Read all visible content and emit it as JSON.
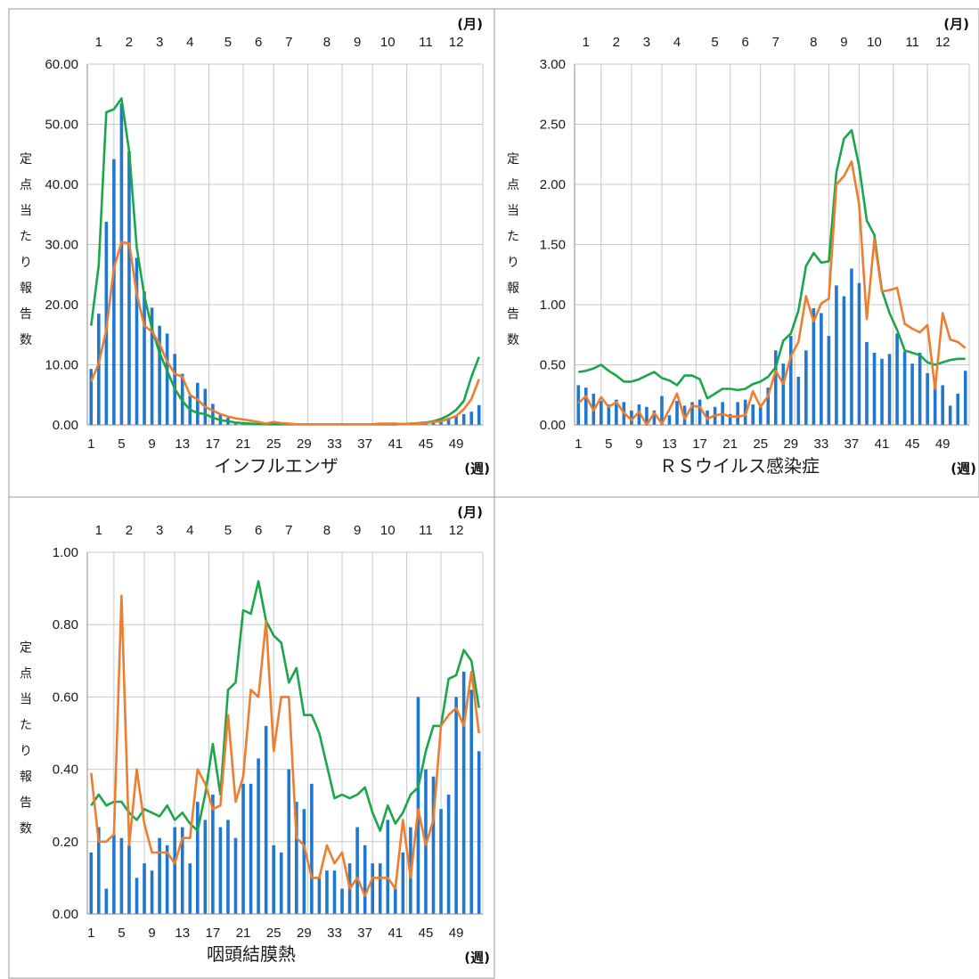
{
  "colors": {
    "bar": "#1f77d0",
    "line_green": "#1aa64a",
    "line_orange": "#ed7d31",
    "grid": "#c8c8c8",
    "frame": "#9a9a9a"
  },
  "month_unit": "(月)",
  "week_unit": "(週)",
  "ylabel": "定点当たり報告数",
  "chart_data": [
    {
      "type": "bar",
      "title": "インフルエンザ",
      "ylim": [
        0,
        60
      ],
      "y_ticks": [
        "0.00",
        "10.00",
        "20.00",
        "30.00",
        "40.00",
        "50.00",
        "60.00"
      ],
      "x_ticks": [
        "1",
        "5",
        "9",
        "13",
        "17",
        "21",
        "25",
        "29",
        "33",
        "37",
        "41",
        "45",
        "49"
      ],
      "months": [
        "1",
        "2",
        "3",
        "4",
        "5",
        "6",
        "7",
        "8",
        "9",
        "10",
        "11",
        "12"
      ],
      "month_week": [
        2.5,
        6.5,
        10.5,
        14.5,
        19.5,
        23.5,
        27.5,
        32.5,
        36.5,
        40.5,
        45.5,
        49.5
      ],
      "weeks": 52,
      "series": [
        {
          "type": "bar",
          "values": [
            9.3,
            18.5,
            33.8,
            44.2,
            53.5,
            45.5,
            27.8,
            22.2,
            19.5,
            16.5,
            15.2,
            11.8,
            8.5,
            4.8,
            7,
            6,
            3.5,
            1.8,
            1.2,
            0.5,
            0.4,
            0.3,
            0.2,
            0.2,
            0.1,
            0.1,
            0.1,
            0.1,
            0.1,
            0.1,
            0.1,
            0.1,
            0.1,
            0.1,
            0.1,
            0.1,
            0.1,
            0.2,
            0.2,
            0.2,
            0.2,
            0.2,
            0.2,
            0.3,
            0.3,
            0.5,
            0.8,
            1.2,
            1.5,
            1.8,
            2.2,
            3.3
          ]
        },
        {
          "type": "line",
          "color": "green",
          "values": [
            16.5,
            26.5,
            52,
            52.5,
            54.3,
            45.5,
            29.5,
            21.5,
            16,
            12,
            9,
            6,
            4,
            2.5,
            2,
            1.8,
            1.2,
            0.8,
            0.6,
            0.4,
            0.3,
            0.2,
            0.15,
            0.1,
            0.1,
            0.1,
            0.1,
            0.1,
            0.1,
            0.1,
            0.1,
            0.1,
            0.1,
            0.1,
            0.1,
            0.1,
            0.1,
            0.1,
            0.1,
            0.1,
            0.1,
            0.15,
            0.2,
            0.3,
            0.4,
            0.6,
            1,
            1.6,
            2.5,
            4,
            8,
            11.3
          ]
        },
        {
          "type": "line",
          "color": "orange",
          "values": [
            7.2,
            10.2,
            15.8,
            26.1,
            30.4,
            30.2,
            21.8,
            16.5,
            15.5,
            13.5,
            10.5,
            8.5,
            8,
            5,
            4.2,
            3,
            2.4,
            1.8,
            1.4,
            1.1,
            0.9,
            0.7,
            0.5,
            0.2,
            0.5,
            0.3,
            0.2,
            0.1,
            0.1,
            0.1,
            0.1,
            0.1,
            0.1,
            0.1,
            0.1,
            0.1,
            0.1,
            0.1,
            0.2,
            0.2,
            0.2,
            0.1,
            0.2,
            0.2,
            0.3,
            0.5,
            0.6,
            1,
            1.5,
            2.6,
            4.3,
            7.6
          ]
        }
      ]
    },
    {
      "type": "bar",
      "title": "ＲＳウイルス感染症",
      "ylim": [
        0,
        3
      ],
      "y_ticks": [
        "0.00",
        "0.50",
        "1.00",
        "1.50",
        "2.00",
        "2.50",
        "3.00"
      ],
      "x_ticks": [
        "1",
        "5",
        "9",
        "13",
        "17",
        "21",
        "25",
        "29",
        "33",
        "37",
        "41",
        "45",
        "49"
      ],
      "months": [
        "1",
        "2",
        "3",
        "4",
        "5",
        "6",
        "7",
        "8",
        "9",
        "10",
        "11",
        "12"
      ],
      "month_week": [
        2.5,
        6.5,
        10.5,
        14.5,
        19.5,
        23.5,
        27.5,
        32.5,
        36.5,
        40.5,
        45.5,
        49.5
      ],
      "weeks": 52,
      "series": [
        {
          "type": "bar",
          "values": [
            0.33,
            0.31,
            0.26,
            0.2,
            0.17,
            0.21,
            0.19,
            0.12,
            0.17,
            0.15,
            0.12,
            0.24,
            0.08,
            0.2,
            0.16,
            0.19,
            0.21,
            0.12,
            0.15,
            0.19,
            0.09,
            0.19,
            0.21,
            0.17,
            0.16,
            0.31,
            0.62,
            0.51,
            0.74,
            0.4,
            0.62,
            0.97,
            0.93,
            0.74,
            1.16,
            1.07,
            1.3,
            1.18,
            0.69,
            0.6,
            0.55,
            0.59,
            0.76,
            0.61,
            0.51,
            0.6,
            0.43,
            0.36,
            0.33,
            0.16,
            0.26,
            0.45
          ]
        },
        {
          "type": "line",
          "color": "green",
          "values": [
            0.44,
            0.45,
            0.47,
            0.5,
            0.45,
            0.41,
            0.36,
            0.36,
            0.38,
            0.41,
            0.44,
            0.39,
            0.37,
            0.33,
            0.41,
            0.41,
            0.38,
            0.22,
            0.26,
            0.3,
            0.3,
            0.29,
            0.3,
            0.34,
            0.36,
            0.4,
            0.48,
            0.7,
            0.76,
            0.95,
            1.32,
            1.43,
            1.35,
            1.36,
            2.1,
            2.38,
            2.45,
            2.15,
            1.7,
            1.58,
            1.12,
            0.93,
            0.79,
            0.62,
            0.6,
            0.58,
            0.52,
            0.5,
            0.52,
            0.54,
            0.55,
            0.55
          ]
        },
        {
          "type": "line",
          "color": "orange",
          "values": [
            0.18,
            0.24,
            0.12,
            0.23,
            0.15,
            0.19,
            0.1,
            0.04,
            0.11,
            0,
            0.1,
            0.01,
            0.13,
            0.26,
            0.05,
            0.16,
            0.15,
            0.05,
            0.08,
            0.09,
            0.07,
            0.07,
            0.08,
            0.28,
            0.15,
            0.24,
            0.45,
            0.34,
            0.57,
            0.69,
            1.07,
            0.86,
            1.01,
            1.05,
            2,
            2.07,
            2.19,
            1.83,
            0.88,
            1.54,
            1.11,
            1.12,
            1.14,
            0.84,
            0.8,
            0.77,
            0.83,
            0.3,
            0.93,
            0.71,
            0.69,
            0.64
          ]
        }
      ]
    },
    {
      "type": "bar",
      "title": "咽頭結膜熱",
      "ylim": [
        0,
        1
      ],
      "y_ticks": [
        "0.00",
        "0.20",
        "0.40",
        "0.60",
        "0.80",
        "1.00"
      ],
      "x_ticks": [
        "1",
        "5",
        "9",
        "13",
        "17",
        "21",
        "25",
        "29",
        "33",
        "37",
        "41",
        "45",
        "49"
      ],
      "months": [
        "1",
        "2",
        "3",
        "4",
        "5",
        "6",
        "7",
        "8",
        "9",
        "10",
        "11",
        "12"
      ],
      "month_week": [
        2.5,
        6.5,
        10.5,
        14.5,
        19.5,
        23.5,
        27.5,
        32.5,
        36.5,
        40.5,
        45.5,
        49.5
      ],
      "weeks": 52,
      "series": [
        {
          "type": "bar",
          "values": [
            0.17,
            0.24,
            0.07,
            0.22,
            0.21,
            0.19,
            0.1,
            0.14,
            0.12,
            0.21,
            0.19,
            0.24,
            0.24,
            0.14,
            0.31,
            0.26,
            0.33,
            0.24,
            0.26,
            0.21,
            0.36,
            0.36,
            0.43,
            0.52,
            0.19,
            0.17,
            0.4,
            0.31,
            0.29,
            0.36,
            0.1,
            0.12,
            0.12,
            0.07,
            0.14,
            0.24,
            0.19,
            0.14,
            0.14,
            0.26,
            0.07,
            0.17,
            0.24,
            0.6,
            0.4,
            0.38,
            0.29,
            0.33,
            0.6,
            0.67,
            0.62,
            0.45
          ]
        },
        {
          "type": "line",
          "color": "green",
          "values": [
            0.3,
            0.33,
            0.3,
            0.31,
            0.31,
            0.28,
            0.26,
            0.29,
            0.28,
            0.27,
            0.3,
            0.26,
            0.28,
            0.25,
            0.23,
            0.33,
            0.47,
            0.33,
            0.62,
            0.64,
            0.84,
            0.83,
            0.92,
            0.81,
            0.77,
            0.75,
            0.64,
            0.68,
            0.55,
            0.55,
            0.5,
            0.41,
            0.32,
            0.33,
            0.32,
            0.33,
            0.35,
            0.28,
            0.23,
            0.3,
            0.25,
            0.28,
            0.33,
            0.35,
            0.45,
            0.52,
            0.52,
            0.65,
            0.66,
            0.73,
            0.7,
            0.57
          ]
        },
        {
          "type": "line",
          "color": "orange",
          "values": [
            0.39,
            0.2,
            0.2,
            0.22,
            0.88,
            0.19,
            0.4,
            0.25,
            0.17,
            0.17,
            0.17,
            0.14,
            0.21,
            0.21,
            0.4,
            0.36,
            0.29,
            0.3,
            0.55,
            0.31,
            0.38,
            0.62,
            0.6,
            0.81,
            0.45,
            0.6,
            0.6,
            0.21,
            0.19,
            0.1,
            0.1,
            0.19,
            0.14,
            0.17,
            0.07,
            0.1,
            0.05,
            0.1,
            0.1,
            0.1,
            0.07,
            0.26,
            0.1,
            0.29,
            0.19,
            0.26,
            0.52,
            0.55,
            0.57,
            0.52,
            0.67,
            0.5
          ]
        }
      ]
    }
  ]
}
